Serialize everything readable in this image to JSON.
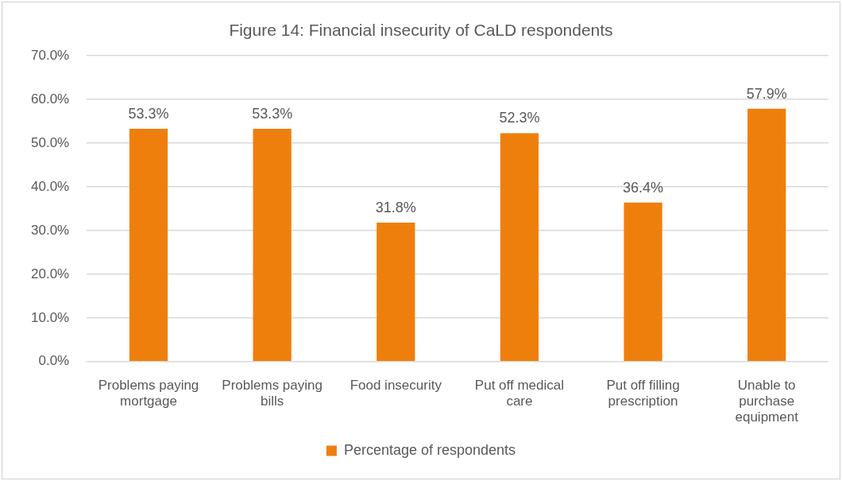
{
  "chart_data": {
    "type": "bar",
    "title": "Figure 14: Financial insecurity of CaLD respondents",
    "categories": [
      "Problems paying mortgage",
      "Problems paying bills",
      "Food insecurity",
      "Put off medical care",
      "Put off filling prescription",
      "Unable to purchase equipment"
    ],
    "series": [
      {
        "name": "Percentage of respondents",
        "color": "#ef7f0d",
        "values": [
          53.3,
          53.3,
          31.8,
          52.3,
          36.4,
          57.9
        ],
        "value_labels": [
          "53.3%",
          "53.3%",
          "31.8%",
          "52.3%",
          "36.4%",
          "57.9%"
        ]
      }
    ],
    "ylim": [
      0,
      70
    ],
    "yticks": [
      {
        "value": 0,
        "label": "0.0%"
      },
      {
        "value": 10,
        "label": "10.0%"
      },
      {
        "value": 20,
        "label": "20.0%"
      },
      {
        "value": 30,
        "label": "30.0%"
      },
      {
        "value": 40,
        "label": "40.0%"
      },
      {
        "value": 50,
        "label": "50.0%"
      },
      {
        "value": 60,
        "label": "60.0%"
      },
      {
        "value": 70,
        "label": "70.0%"
      }
    ],
    "grid": "y",
    "legend": "bottom"
  }
}
